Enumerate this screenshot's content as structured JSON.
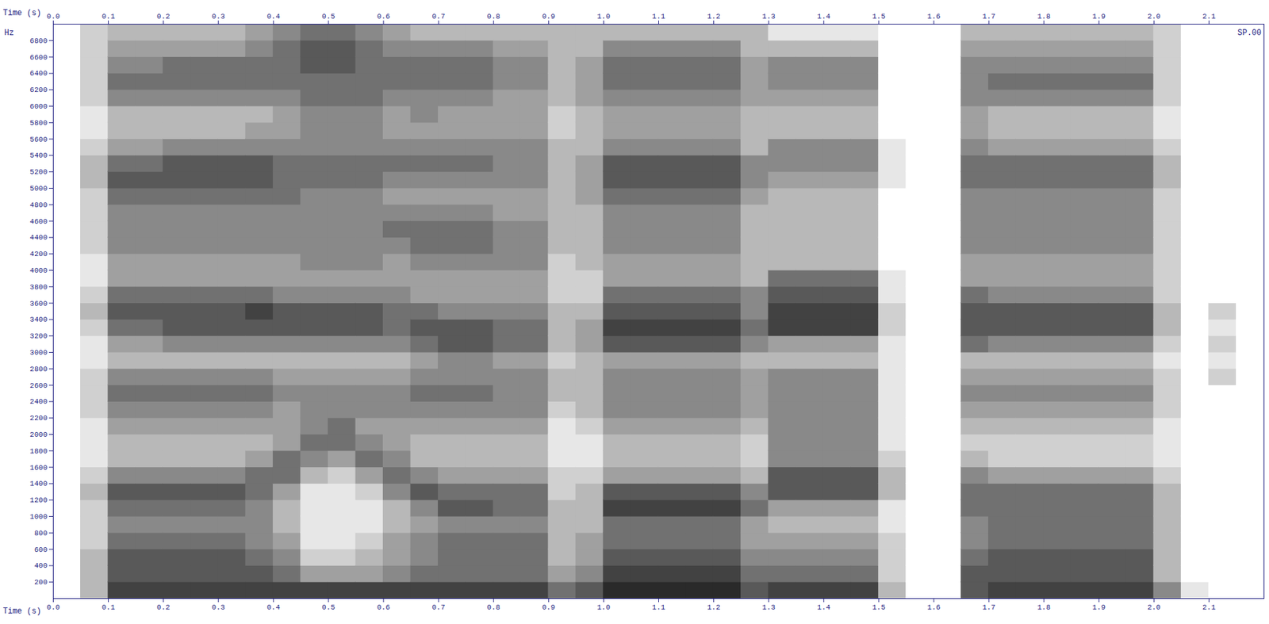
{
  "chart_data": {
    "type": "heatmap",
    "x_label": "Time (s)",
    "y_label": "Hz",
    "annotations": [
      "SP.00"
    ],
    "xlim": [
      0,
      2.2
    ],
    "ylim": [
      0,
      7000
    ],
    "xticks": [
      {
        "value": 0,
        "label": "0.0"
      },
      0.1,
      0.2,
      0.3,
      0.4,
      0.5,
      0.6,
      0.7,
      0.8,
      0.9,
      {
        "value": 1,
        "label": "1.0"
      },
      1.1,
      1.2,
      1.3,
      1.4,
      1.5,
      1.6,
      1.7,
      1.8,
      1.9,
      {
        "value": 2,
        "label": "2.0"
      },
      2.1
    ],
    "yticks": [
      200,
      400,
      600,
      800,
      1000,
      1200,
      1400,
      1600,
      1800,
      2000,
      2200,
      2400,
      2600,
      2800,
      3000,
      3200,
      3400,
      3600,
      3800,
      4000,
      4200,
      4400,
      4600,
      4800,
      5000,
      5200,
      5400,
      5600,
      5800,
      6000,
      6200,
      6400,
      6600,
      6800
    ],
    "time_edges": [
      0,
      0.05,
      0.1,
      0.15,
      0.2,
      0.25,
      0.3,
      0.35,
      0.4,
      0.45,
      0.5,
      0.55,
      0.6,
      0.65,
      0.7,
      0.75,
      0.8,
      0.85,
      0.9,
      0.95,
      1,
      1.05,
      1.1,
      1.15,
      1.2,
      1.25,
      1.3,
      1.35,
      1.4,
      1.45,
      1.5,
      1.55,
      1.6,
      1.65,
      1.7,
      1.75,
      1.8,
      1.85,
      1.9,
      1.95,
      2,
      2.05,
      2.1,
      2.15,
      2.2
    ],
    "freq_edges": [
      0,
      200,
      400,
      600,
      800,
      1000,
      1200,
      1400,
      1600,
      1800,
      2000,
      2200,
      2400,
      2600,
      2800,
      3000,
      3200,
      3400,
      3600,
      3800,
      4000,
      4200,
      4400,
      4600,
      4800,
      5000,
      5200,
      5400,
      5600,
      5800,
      6000,
      6200,
      6400,
      6600,
      6800,
      7000
    ],
    "zlim": [
      0,
      9
    ],
    "cells": [
      [
        0,
        0,
        0,
        0,
        0,
        0,
        0,
        0,
        0,
        0,
        0,
        0,
        0,
        0,
        0,
        0,
        0,
        0,
        0,
        0,
        0,
        0,
        0,
        0,
        0,
        0,
        0,
        0,
        0,
        0,
        0,
        0,
        0,
        0,
        0
      ],
      [
        3,
        3,
        3,
        2,
        2,
        2,
        3,
        2,
        1,
        1,
        1,
        2,
        2,
        2,
        1,
        1,
        2,
        3,
        2,
        1,
        1,
        2,
        2,
        2,
        2,
        3,
        3,
        2,
        1,
        1,
        2,
        2,
        2,
        2,
        2
      ],
      [
        8,
        7,
        7,
        6,
        5,
        6,
        7,
        5,
        3,
        3,
        4,
        5,
        6,
        5,
        3,
        4,
        6,
        7,
        6,
        4,
        4,
        5,
        5,
        5,
        6,
        7,
        6,
        4,
        3,
        3,
        5,
        6,
        5,
        4,
        3
      ],
      [
        8,
        7,
        7,
        6,
        5,
        6,
        7,
        5,
        3,
        3,
        4,
        5,
        6,
        5,
        3,
        4,
        6,
        7,
        6,
        4,
        4,
        5,
        5,
        5,
        6,
        7,
        6,
        4,
        3,
        3,
        5,
        6,
        5,
        4,
        3
      ],
      [
        8,
        7,
        7,
        6,
        5,
        6,
        7,
        5,
        3,
        3,
        4,
        5,
        6,
        5,
        3,
        5,
        7,
        7,
        6,
        4,
        4,
        5,
        5,
        5,
        6,
        7,
        7,
        5,
        3,
        3,
        5,
        6,
        6,
        4,
        3
      ],
      [
        8,
        7,
        7,
        6,
        5,
        6,
        7,
        5,
        3,
        3,
        4,
        5,
        6,
        5,
        3,
        5,
        7,
        7,
        6,
        4,
        4,
        5,
        5,
        5,
        6,
        7,
        7,
        5,
        3,
        3,
        5,
        6,
        6,
        4,
        3
      ],
      [
        8,
        7,
        7,
        6,
        5,
        6,
        7,
        5,
        3,
        3,
        4,
        5,
        6,
        5,
        3,
        5,
        7,
        7,
        6,
        4,
        4,
        5,
        5,
        5,
        6,
        7,
        7,
        5,
        3,
        3,
        5,
        6,
        6,
        4,
        3
      ],
      [
        8,
        7,
        6,
        5,
        5,
        5,
        6,
        6,
        4,
        3,
        4,
        5,
        6,
        5,
        3,
        5,
        7,
        8,
        6,
        4,
        4,
        5,
        5,
        5,
        6,
        7,
        7,
        5,
        4,
        3,
        5,
        6,
        6,
        5,
        4
      ],
      [
        8,
        6,
        5,
        4,
        3,
        3,
        4,
        6,
        6,
        4,
        4,
        4,
        5,
        4,
        3,
        5,
        7,
        7,
        5,
        4,
        4,
        5,
        5,
        5,
        6,
        6,
        6,
        5,
        4,
        4,
        5,
        6,
        6,
        6,
        5
      ],
      [
        8,
        4,
        2,
        1,
        1,
        1,
        1,
        3,
        5,
        6,
        5,
        5,
        5,
        4,
        3,
        5,
        7,
        7,
        5,
        4,
        5,
        5,
        5,
        5,
        5,
        6,
        6,
        5,
        5,
        5,
        6,
        6,
        7,
        7,
        6
      ],
      [
        8,
        4,
        2,
        1,
        1,
        1,
        1,
        2,
        4,
        6,
        6,
        5,
        5,
        4,
        3,
        5,
        7,
        7,
        5,
        4,
        5,
        5,
        5,
        5,
        5,
        6,
        6,
        5,
        5,
        5,
        6,
        6,
        7,
        7,
        6
      ],
      [
        8,
        4,
        3,
        2,
        1,
        1,
        2,
        4,
        6,
        5,
        4,
        5,
        5,
        4,
        3,
        5,
        7,
        7,
        5,
        4,
        5,
        5,
        5,
        5,
        5,
        6,
        6,
        5,
        5,
        5,
        6,
        6,
        6,
        6,
        5
      ],
      [
        8,
        5,
        4,
        4,
        3,
        3,
        5,
        6,
        5,
        4,
        4,
        5,
        5,
        4,
        3,
        5,
        6,
        6,
        5,
        4,
        4,
        5,
        6,
        5,
        4,
        5,
        6,
        5,
        4,
        4,
        5,
        6,
        6,
        5,
        4
      ],
      [
        8,
        6,
        5,
        5,
        4,
        5,
        7,
        5,
        3,
        3,
        4,
        5,
        6,
        5,
        4,
        6,
        7,
        6,
        4,
        4,
        5,
        6,
        6,
        5,
        4,
        5,
        6,
        5,
        4,
        5,
        5,
        6,
        6,
        5,
        3
      ],
      [
        8,
        6,
        6,
        6,
        5,
        7,
        6,
        4,
        3,
        3,
        4,
        5,
        6,
        5,
        5,
        7,
        7,
        5,
        4,
        4,
        5,
        6,
        6,
        5,
        4,
        5,
        6,
        5,
        4,
        4,
        5,
        6,
        6,
        5,
        3
      ],
      [
        8,
        6,
        6,
        6,
        5,
        7,
        6,
        4,
        3,
        3,
        4,
        5,
        6,
        5,
        5,
        7,
        7,
        5,
        4,
        4,
        5,
        6,
        6,
        5,
        4,
        5,
        6,
        5,
        4,
        4,
        5,
        6,
        6,
        5,
        3
      ],
      [
        8,
        6,
        6,
        6,
        5,
        6,
        6,
        4,
        3,
        3,
        4,
        5,
        5,
        5,
        4,
        6,
        6,
        5,
        4,
        4,
        5,
        5,
        5,
        4,
        4,
        5,
        5,
        5,
        4,
        4,
        4,
        5,
        5,
        4,
        3
      ],
      [
        8,
        6,
        6,
        6,
        5,
        6,
        6,
        4,
        3,
        3,
        4,
        5,
        5,
        5,
        4,
        6,
        6,
        5,
        4,
        4,
        5,
        5,
        5,
        4,
        4,
        5,
        5,
        5,
        4,
        4,
        4,
        5,
        5,
        4,
        3
      ],
      [
        6,
        4,
        3,
        3,
        3,
        3,
        2,
        2,
        1,
        1,
        1,
        2,
        3,
        3,
        2,
        3,
        3,
        3,
        2,
        2,
        2,
        3,
        3,
        3,
        3,
        3,
        3,
        3,
        2,
        2,
        3,
        3,
        3,
        3,
        3
      ],
      [
        7,
        5,
        4,
        4,
        3,
        3,
        3,
        2,
        1,
        1,
        2,
        3,
        3,
        3,
        3,
        4,
        4,
        3,
        2,
        2,
        3,
        3,
        3,
        3,
        4,
        4,
        4,
        3,
        3,
        3,
        4,
        4,
        4,
        3,
        3
      ],
      [
        9,
        8,
        7,
        6,
        6,
        8,
        7,
        4,
        3,
        3,
        4,
        5,
        5,
        5,
        4,
        7,
        8,
        7,
        6,
        4,
        4,
        5,
        5,
        5,
        6,
        7,
        7,
        5,
        4,
        4,
        5,
        6,
        6,
        5,
        3
      ],
      [
        9,
        8,
        7,
        6,
        6,
        8,
        7,
        4,
        3,
        3,
        4,
        5,
        5,
        5,
        4,
        7,
        8,
        7,
        6,
        4,
        4,
        5,
        5,
        5,
        6,
        7,
        7,
        5,
        4,
        4,
        5,
        6,
        6,
        5,
        3
      ],
      [
        9,
        8,
        7,
        6,
        6,
        8,
        7,
        4,
        3,
        3,
        4,
        5,
        5,
        5,
        4,
        7,
        8,
        7,
        6,
        4,
        4,
        5,
        5,
        5,
        6,
        7,
        7,
        5,
        4,
        4,
        5,
        6,
        6,
        5,
        3
      ],
      [
        9,
        8,
        7,
        6,
        6,
        8,
        7,
        4,
        3,
        3,
        4,
        5,
        5,
        5,
        4,
        7,
        8,
        7,
        6,
        4,
        4,
        5,
        5,
        5,
        6,
        7,
        7,
        5,
        4,
        4,
        5,
        6,
        6,
        5,
        3
      ],
      [
        9,
        8,
        7,
        6,
        6,
        8,
        7,
        4,
        3,
        3,
        4,
        5,
        5,
        5,
        4,
        7,
        8,
        7,
        6,
        4,
        4,
        5,
        5,
        5,
        6,
        7,
        7,
        5,
        4,
        4,
        5,
        6,
        6,
        5,
        3
      ],
      [
        7,
        6,
        5,
        4,
        4,
        6,
        5,
        3,
        2,
        2,
        3,
        4,
        4,
        4,
        3,
        5,
        6,
        5,
        5,
        3,
        3,
        3,
        3,
        3,
        4,
        5,
        5,
        3,
        3,
        3,
        4,
        4,
        4,
        3,
        3
      ],
      [
        8,
        6,
        5,
        4,
        3,
        4,
        7,
        7,
        5,
        5,
        5,
        5,
        5,
        5,
        3,
        4,
        8,
        8,
        7,
        6,
        3,
        3,
        3,
        3,
        3,
        4,
        5,
        5,
        3,
        3,
        4,
        5,
        5,
        3,
        1
      ],
      [
        8,
        6,
        5,
        4,
        3,
        4,
        7,
        7,
        5,
        5,
        5,
        5,
        5,
        5,
        3,
        4,
        8,
        8,
        7,
        6,
        3,
        3,
        3,
        3,
        3,
        4,
        5,
        5,
        3,
        3,
        4,
        5,
        5,
        3,
        1
      ],
      [
        8,
        6,
        5,
        4,
        3,
        4,
        7,
        7,
        5,
        5,
        5,
        5,
        5,
        5,
        3,
        4,
        8,
        8,
        7,
        6,
        3,
        3,
        3,
        3,
        3,
        4,
        5,
        5,
        3,
        3,
        4,
        5,
        5,
        3,
        1
      ],
      [
        8,
        6,
        5,
        4,
        3,
        4,
        7,
        7,
        5,
        5,
        5,
        5,
        5,
        5,
        3,
        4,
        8,
        8,
        7,
        6,
        3,
        3,
        3,
        3,
        3,
        4,
        5,
        5,
        3,
        3,
        4,
        5,
        5,
        3,
        1
      ],
      [
        3,
        2,
        2,
        2,
        1,
        1,
        3,
        3,
        2,
        1,
        1,
        1,
        1,
        1,
        1,
        1,
        2,
        2,
        1,
        1,
        0,
        0,
        0,
        0,
        0,
        1,
        1,
        1,
        0,
        0,
        0,
        0,
        0,
        0,
        0
      ],
      [
        0,
        0,
        0,
        0,
        0,
        0,
        0,
        0,
        0,
        0,
        0,
        0,
        0,
        0,
        0,
        0,
        0,
        0,
        0,
        0,
        0,
        0,
        0,
        0,
        0,
        0,
        0,
        0,
        0,
        0,
        0,
        0,
        0,
        0,
        0
      ],
      [
        0,
        0,
        0,
        0,
        0,
        0,
        0,
        0,
        0,
        0,
        0,
        0,
        0,
        0,
        0,
        0,
        0,
        0,
        0,
        0,
        0,
        0,
        0,
        0,
        0,
        0,
        0,
        0,
        0,
        0,
        0,
        0,
        0,
        0,
        0
      ],
      [
        7,
        7,
        6,
        5,
        5,
        6,
        6,
        5,
        3,
        2,
        3,
        4,
        5,
        4,
        3,
        6,
        7,
        7,
        6,
        4,
        4,
        5,
        5,
        5,
        5,
        6,
        6,
        5,
        4,
        4,
        5,
        5,
        5,
        4,
        3
      ],
      [
        8,
        7,
        7,
        6,
        6,
        6,
        6,
        4,
        2,
        2,
        3,
        4,
        5,
        4,
        3,
        5,
        7,
        7,
        5,
        4,
        4,
        5,
        5,
        5,
        5,
        6,
        6,
        4,
        3,
        3,
        5,
        6,
        5,
        4,
        3
      ],
      [
        8,
        7,
        7,
        6,
        6,
        6,
        6,
        4,
        2,
        2,
        3,
        4,
        5,
        4,
        3,
        5,
        7,
        7,
        5,
        4,
        4,
        5,
        5,
        5,
        5,
        6,
        6,
        4,
        3,
        3,
        5,
        6,
        5,
        4,
        3
      ],
      [
        8,
        7,
        7,
        6,
        6,
        6,
        6,
        4,
        2,
        2,
        3,
        4,
        5,
        4,
        3,
        5,
        7,
        7,
        5,
        4,
        4,
        5,
        5,
        5,
        5,
        6,
        6,
        4,
        3,
        3,
        5,
        6,
        5,
        4,
        3
      ],
      [
        8,
        7,
        7,
        6,
        6,
        6,
        6,
        4,
        2,
        2,
        3,
        4,
        5,
        4,
        3,
        5,
        7,
        7,
        5,
        4,
        4,
        5,
        5,
        5,
        5,
        6,
        6,
        4,
        3,
        3,
        5,
        6,
        5,
        4,
        3
      ],
      [
        8,
        7,
        7,
        6,
        6,
        6,
        6,
        4,
        2,
        2,
        3,
        4,
        5,
        4,
        3,
        5,
        7,
        7,
        5,
        4,
        4,
        5,
        5,
        5,
        5,
        6,
        6,
        4,
        3,
        3,
        5,
        6,
        5,
        4,
        3
      ],
      [
        8,
        7,
        7,
        6,
        6,
        6,
        6,
        4,
        2,
        2,
        3,
        4,
        5,
        4,
        3,
        5,
        7,
        7,
        5,
        4,
        4,
        5,
        5,
        5,
        5,
        6,
        6,
        4,
        3,
        3,
        5,
        6,
        5,
        4,
        3
      ],
      [
        5,
        3,
        3,
        3,
        3,
        3,
        3,
        2,
        1,
        1,
        1,
        2,
        2,
        2,
        1,
        2,
        3,
        3,
        2,
        2,
        2,
        2,
        2,
        2,
        2,
        3,
        3,
        2,
        1,
        1,
        2,
        2,
        2,
        2,
        2
      ],
      [
        1,
        0,
        0,
        0,
        0,
        0,
        0,
        0,
        0,
        0,
        0,
        0,
        0,
        0,
        0,
        0,
        0,
        0,
        0,
        0,
        0,
        0,
        0,
        0,
        0,
        0,
        0,
        0,
        0,
        0,
        0,
        0,
        0,
        0,
        0
      ],
      [
        0,
        0,
        0,
        0,
        0,
        0,
        0,
        0,
        0,
        0,
        0,
        0,
        0,
        2,
        1,
        2,
        1,
        2,
        0,
        0,
        0,
        0,
        0,
        0,
        0,
        0,
        0,
        0,
        0,
        0,
        0,
        0,
        0,
        0,
        0
      ],
      [
        0,
        0,
        0,
        0,
        0,
        0,
        0,
        0,
        0,
        0,
        0,
        0,
        0,
        0,
        0,
        0,
        0,
        0,
        0,
        0,
        0,
        0,
        0,
        0,
        0,
        0,
        0,
        0,
        0,
        0,
        0,
        0,
        0,
        0,
        0
      ]
    ]
  }
}
